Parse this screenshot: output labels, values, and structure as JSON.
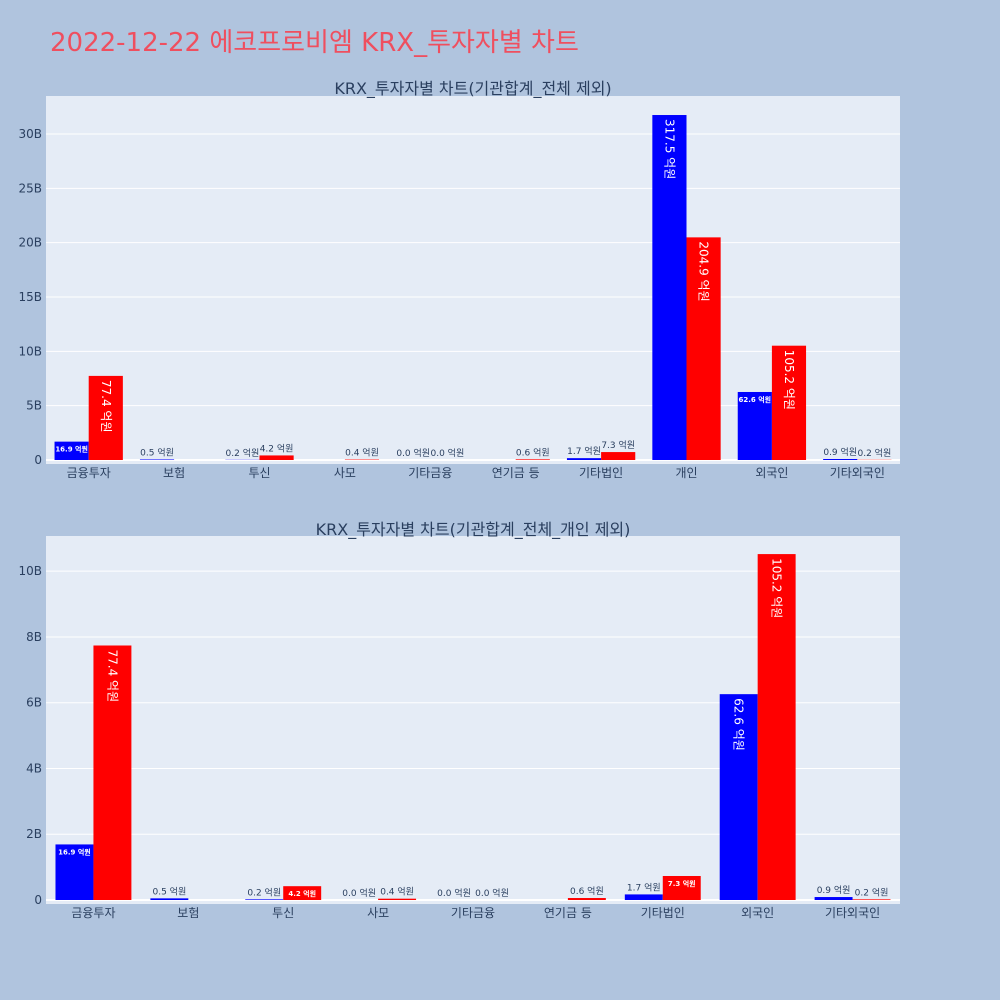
{
  "page_title": "2022-12-22 에코프로비엠 KRX_투자자별 차트",
  "colors": {
    "series_1": "#0000ff",
    "series_2": "#ff0000",
    "plot_bg": "#e5ecf6",
    "page_bg": "#b0c4de",
    "title": "#ef4f5f"
  },
  "chart_data": [
    {
      "type": "bar",
      "title": "KRX_투자자별 차트(기관합계_전체 제외)",
      "categories": [
        "금융투자",
        "보험",
        "투신",
        "사모",
        "기타금융",
        "연기금 등",
        "기타법인",
        "개인",
        "외국인",
        "기타외국인"
      ],
      "y_tick_labels": [
        "0",
        "5B",
        "10B",
        "15B",
        "20B",
        "25B",
        "30B"
      ],
      "y_ticks": [
        0,
        5,
        10,
        15,
        20,
        25,
        30
      ],
      "ylim": [
        0,
        33.5
      ],
      "unit": "B",
      "grid": true,
      "series": [
        {
          "color": "#0000ff",
          "values": [
            1.69,
            0.05,
            0.02,
            0.0,
            0.0,
            0.0,
            0.17,
            31.75,
            6.26,
            0.09
          ],
          "labels": [
            "16.9 억원",
            "0.5 억원",
            "0.2 억원",
            "",
            "0.0 억원",
            "",
            "1.7 억원",
            "317.5 억원",
            "62.6 억원",
            "0.9 억원"
          ]
        },
        {
          "color": "#ff0000",
          "values": [
            7.74,
            0.0,
            0.42,
            0.04,
            0.0,
            0.06,
            0.73,
            20.49,
            10.52,
            0.02
          ],
          "labels": [
            "77.4 억원",
            "",
            "4.2 억원",
            "0.4 억원",
            "0.0 억원",
            "0.6 억원",
            "7.3 억원",
            "204.9 억원",
            "105.2 억원",
            "0.2 억원"
          ]
        }
      ]
    },
    {
      "type": "bar",
      "title": "KRX_투자자별 차트(기관합계_전체_개인 제외)",
      "categories": [
        "금융투자",
        "보험",
        "투신",
        "사모",
        "기타금융",
        "연기금 등",
        "기타법인",
        "외국인",
        "기타외국인"
      ],
      "y_tick_labels": [
        "0",
        "2B",
        "4B",
        "6B",
        "8B",
        "10B"
      ],
      "y_ticks": [
        0,
        2,
        4,
        6,
        8,
        10
      ],
      "ylim": [
        0,
        11.07
      ],
      "unit": "B",
      "grid": true,
      "series": [
        {
          "color": "#0000ff",
          "values": [
            1.69,
            0.05,
            0.02,
            0.0,
            0.0,
            0.0,
            0.17,
            6.26,
            0.09
          ],
          "labels": [
            "16.9 억원",
            "0.5 억원",
            "0.2 억원",
            "0.0 억원",
            "0.0 억원",
            "",
            "1.7 억원",
            "62.6 억원",
            "0.9 억원"
          ]
        },
        {
          "color": "#ff0000",
          "values": [
            7.74,
            0.0,
            0.42,
            0.04,
            0.0,
            0.06,
            0.73,
            10.52,
            0.02
          ],
          "labels": [
            "77.4 억원",
            "",
            "4.2 억원",
            "0.4 억원",
            "0.0 억원",
            "0.6 억원",
            "7.3 억원",
            "105.2 억원",
            "0.2 억원"
          ]
        }
      ]
    }
  ]
}
